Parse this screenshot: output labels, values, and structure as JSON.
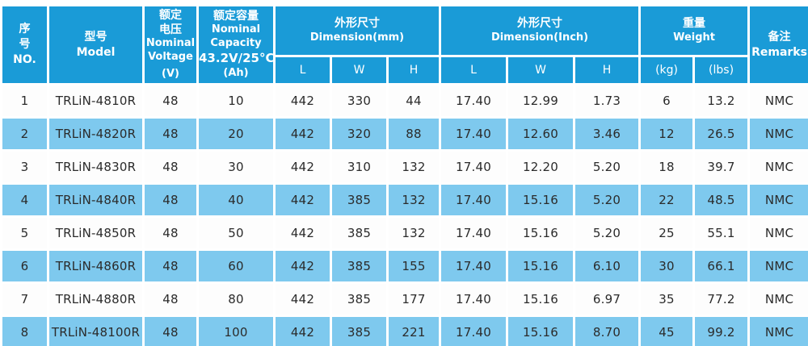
{
  "table": {
    "colors": {
      "header_blue": "#1A9BD7",
      "row_blue": "#7EC9EE",
      "row_white": "#FDFDFD",
      "text_dark": "#2B2B2B",
      "header_text": "#FFFFFF",
      "gutter_white": "#FFFFFF"
    },
    "header": {
      "no": "序\n号\nNO.",
      "model": "型号\nModel",
      "voltage": {
        "zh": "额定\n电压",
        "en": "Nominal\nVoltage",
        "unit": "(V)"
      },
      "capacity": {
        "zh": "额定容量",
        "en": "Nominal\nCapacity",
        "cond": "43.2V/25°C",
        "unit": "(Ah)"
      },
      "dim_mm": {
        "zh": "外形尺寸",
        "en": "Dimension(mm)"
      },
      "dim_inch": {
        "zh": "外形尺寸",
        "en": "Dimension(Inch)"
      },
      "weight": {
        "zh": "重量",
        "en": "Weight"
      },
      "remarks": "备注\nRemarks",
      "sub_dim": [
        "L",
        "W",
        "H"
      ],
      "sub_weight": [
        "(kg)",
        "(lbs)"
      ]
    },
    "column_keys": [
      "no",
      "model",
      "voltage-v",
      "capacity-ah",
      "l-mm",
      "w-mm",
      "h-mm",
      "l-inch",
      "w-inch",
      "h-inch",
      "weight-kg",
      "weight-lbs",
      "remarks"
    ],
    "rows": [
      [
        "1",
        "TRLiN-4810R",
        "48",
        "10",
        "442",
        "330",
        "44",
        "17.40",
        "12.99",
        "1.73",
        "6",
        "13.2",
        "NMC"
      ],
      [
        "2",
        "TRLiN-4820R",
        "48",
        "20",
        "442",
        "320",
        "88",
        "17.40",
        "12.60",
        "3.46",
        "12",
        "26.5",
        "NMC"
      ],
      [
        "3",
        "TRLiN-4830R",
        "48",
        "30",
        "442",
        "310",
        "132",
        "17.40",
        "12.20",
        "5.20",
        "18",
        "39.7",
        "NMC"
      ],
      [
        "4",
        "TRLiN-4840R",
        "48",
        "40",
        "442",
        "385",
        "132",
        "17.40",
        "15.16",
        "5.20",
        "22",
        "48.5",
        "NMC"
      ],
      [
        "5",
        "TRLiN-4850R",
        "48",
        "50",
        "442",
        "385",
        "132",
        "17.40",
        "15.16",
        "5.20",
        "25",
        "55.1",
        "NMC"
      ],
      [
        "6",
        "TRLiN-4860R",
        "48",
        "60",
        "442",
        "385",
        "155",
        "17.40",
        "15.16",
        "6.10",
        "30",
        "66.1",
        "NMC"
      ],
      [
        "7",
        "TRLiN-4880R",
        "48",
        "80",
        "442",
        "385",
        "177",
        "17.40",
        "15.16",
        "6.97",
        "35",
        "77.2",
        "NMC"
      ],
      [
        "8",
        "TRLiN-48100R",
        "48",
        "100",
        "442",
        "385",
        "221",
        "17.40",
        "15.16",
        "8.70",
        "45",
        "99.2",
        "NMC"
      ]
    ]
  }
}
